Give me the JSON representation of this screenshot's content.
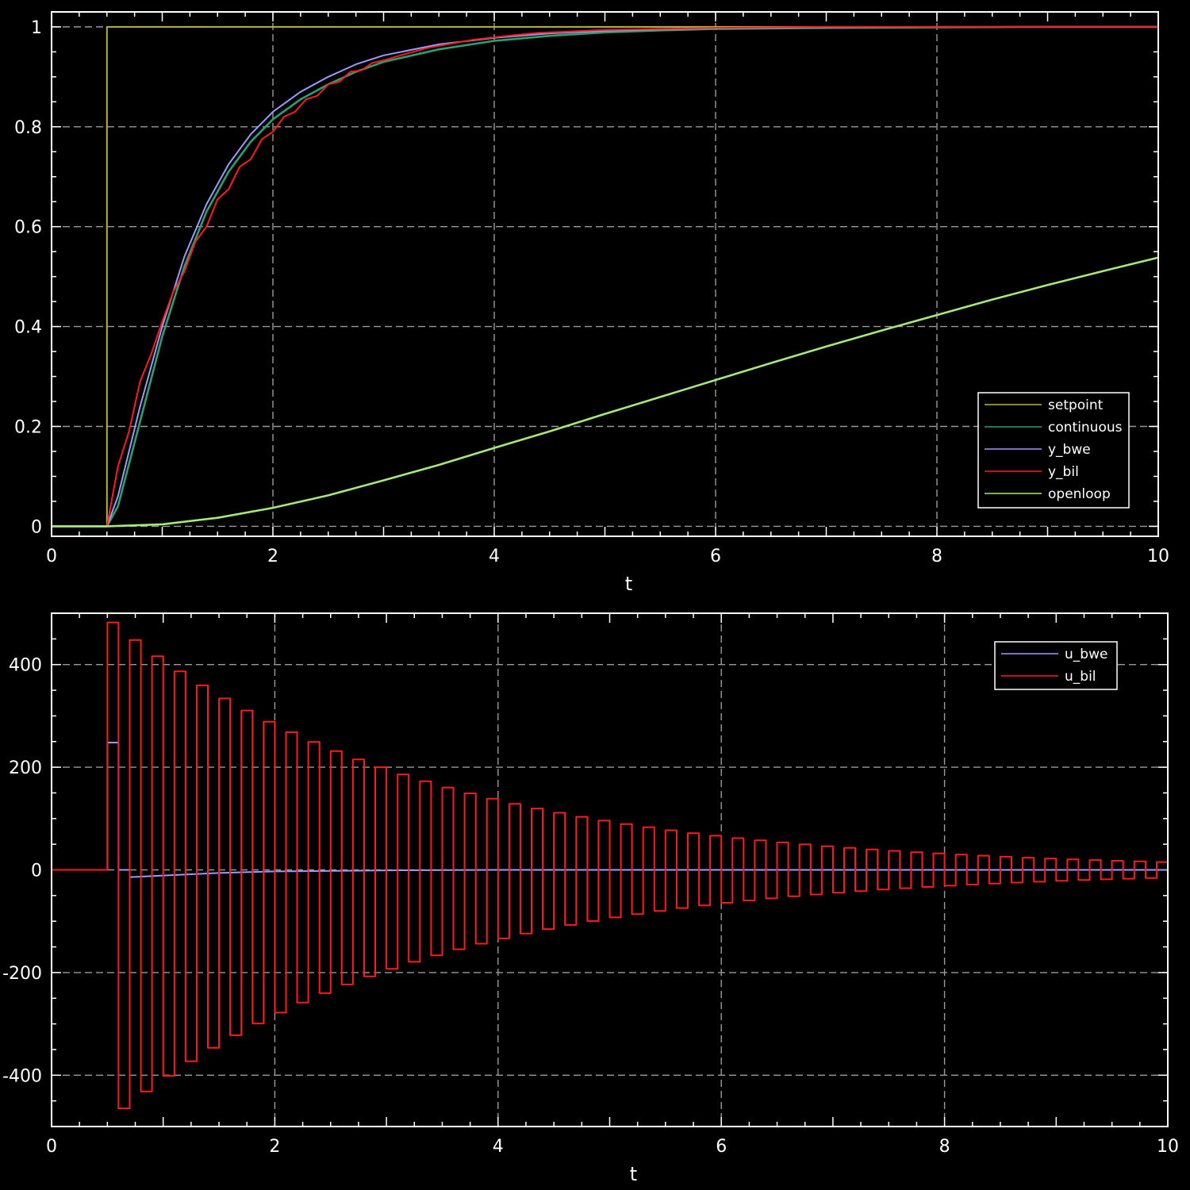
{
  "chart_data": [
    {
      "type": "line",
      "xlabel": "t",
      "ylabel": "",
      "xlim": [
        0,
        10
      ],
      "ylim": [
        -0.02,
        1.03
      ],
      "xticks": [
        "0",
        "2",
        "4",
        "6",
        "8",
        "10"
      ],
      "yticks": [
        "0",
        "0.2",
        "0.4",
        "0.6",
        "0.8",
        "1"
      ],
      "grid": true,
      "legend_position": "bottom-right",
      "series": [
        {
          "name": "setpoint",
          "color": "#b5b53a",
          "x": [
            0,
            0.5,
            0.5,
            10
          ],
          "y": [
            0,
            0,
            1,
            1
          ]
        },
        {
          "name": "continuous",
          "color": "#2aa070",
          "x": [
            0,
            0.5,
            0.6,
            0.8,
            1.0,
            1.2,
            1.4,
            1.6,
            1.8,
            2.0,
            2.25,
            2.5,
            2.75,
            3.0,
            3.5,
            4.0,
            4.5,
            5.0,
            5.5,
            6.0,
            7.0,
            8.0,
            9.0,
            10.0
          ],
          "y": [
            0,
            0,
            0.04,
            0.21,
            0.38,
            0.52,
            0.63,
            0.71,
            0.77,
            0.815,
            0.855,
            0.885,
            0.91,
            0.93,
            0.955,
            0.972,
            0.982,
            0.989,
            0.993,
            0.996,
            0.998,
            0.999,
            1.0,
            1.0
          ]
        },
        {
          "name": "y_bwe",
          "color": "#9a9aff",
          "x": [
            0,
            0.5,
            0.6,
            0.8,
            1.0,
            1.2,
            1.4,
            1.6,
            1.8,
            2.0,
            2.25,
            2.5,
            2.75,
            3.0,
            3.5,
            4.0,
            4.5,
            5.0,
            5.5,
            6.0,
            7.0,
            8.0,
            9.0,
            10.0
          ],
          "y": [
            0,
            0,
            0.06,
            0.24,
            0.4,
            0.54,
            0.645,
            0.725,
            0.785,
            0.83,
            0.87,
            0.9,
            0.925,
            0.943,
            0.965,
            0.978,
            0.987,
            0.992,
            0.995,
            0.997,
            0.999,
            1.0,
            1.0,
            1.0
          ]
        },
        {
          "name": "y_bil",
          "color": "#ff1a1a",
          "x": [
            0,
            0.5,
            0.6,
            0.7,
            0.8,
            0.9,
            1.0,
            1.1,
            1.2,
            1.3,
            1.4,
            1.5,
            1.6,
            1.7,
            1.8,
            1.9,
            2.0,
            2.1,
            2.2,
            2.3,
            2.4,
            2.5,
            2.6,
            2.7,
            2.8,
            2.9,
            3.0,
            3.2,
            3.4,
            3.6,
            3.8,
            4.0,
            4.2,
            4.4,
            4.6,
            4.8,
            5.0,
            5.5,
            6.0,
            6.5,
            7.0,
            8.0,
            9.0,
            10.0
          ],
          "y": [
            0,
            0,
            0.12,
            0.19,
            0.29,
            0.345,
            0.41,
            0.47,
            0.51,
            0.57,
            0.6,
            0.655,
            0.675,
            0.72,
            0.735,
            0.775,
            0.79,
            0.82,
            0.83,
            0.855,
            0.862,
            0.885,
            0.89,
            0.91,
            0.913,
            0.928,
            0.933,
            0.946,
            0.958,
            0.966,
            0.974,
            0.979,
            0.984,
            0.988,
            0.99,
            0.992,
            0.994,
            0.996,
            0.998,
            0.999,
            1.0,
            1.0,
            1.0,
            1.0
          ]
        },
        {
          "name": "openloop",
          "color": "#a8e878",
          "x": [
            0,
            0.5,
            1.0,
            1.5,
            2.0,
            2.5,
            3.0,
            3.5,
            4.0,
            4.5,
            5.0,
            5.5,
            6.0,
            6.5,
            7.0,
            7.5,
            8.0,
            8.5,
            9.0,
            9.5,
            10.0
          ],
          "y": [
            0,
            0,
            0.004,
            0.017,
            0.037,
            0.062,
            0.092,
            0.123,
            0.157,
            0.19,
            0.225,
            0.259,
            0.293,
            0.327,
            0.36,
            0.392,
            0.423,
            0.454,
            0.483,
            0.511,
            0.538
          ]
        }
      ]
    },
    {
      "type": "line",
      "xlabel": "t",
      "ylabel": "",
      "xlim": [
        0,
        10
      ],
      "ylim": [
        -500,
        500
      ],
      "xticks": [
        "0",
        "2",
        "4",
        "6",
        "8",
        "10"
      ],
      "yticks": [
        "-400",
        "-200",
        "0",
        "200",
        "400"
      ],
      "grid": true,
      "legend_position": "top-right",
      "series": [
        {
          "name": "u_bwe",
          "color": "#9a9aff",
          "x": [
            0,
            0.5,
            0.5,
            0.6,
            0.6,
            0.7,
            0.7,
            1.0,
            1.5,
            2.0,
            3.0,
            4.0,
            6.0,
            10.0
          ],
          "y": [
            0,
            0,
            248,
            248,
            0,
            0,
            -14,
            -11,
            -6,
            -3,
            -1,
            0,
            0,
            0
          ]
        },
        {
          "name": "u_bil",
          "color": "#ff1a1a",
          "step": 0.1,
          "start": 0.5,
          "amplitude_first": 482,
          "decay_per_step": 0.964
        }
      ]
    }
  ],
  "legend_top": [
    {
      "label": "setpoint",
      "color": "#b5b53a"
    },
    {
      "label": "continuous",
      "color": "#2aa070"
    },
    {
      "label": "y_bwe",
      "color": "#9a9aff"
    },
    {
      "label": "y_bil",
      "color": "#ff1a1a"
    },
    {
      "label": "openloop",
      "color": "#a8e878"
    }
  ],
  "legend_bottom": [
    {
      "label": "u_bwe",
      "color": "#9a9aff"
    },
    {
      "label": "u_bil",
      "color": "#ff1a1a"
    }
  ]
}
